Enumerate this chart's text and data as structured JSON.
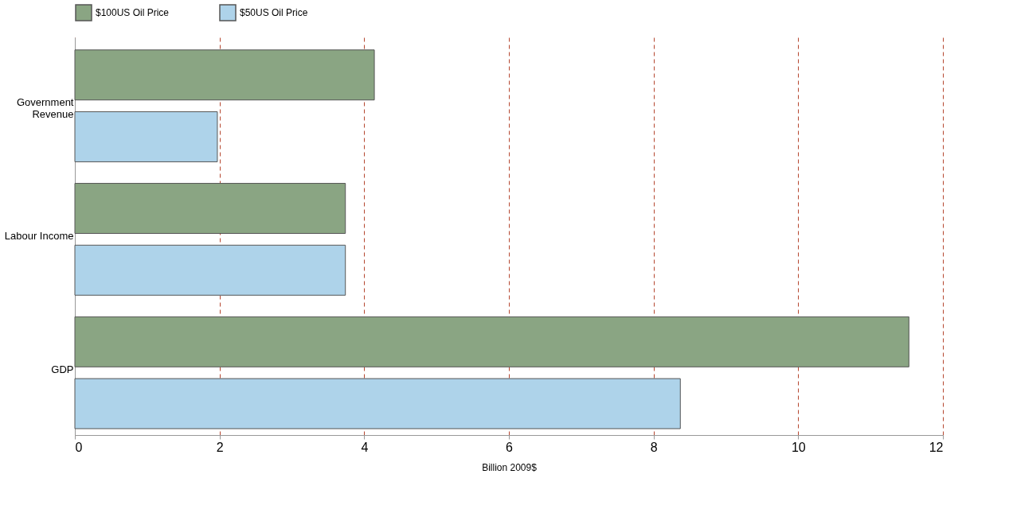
{
  "chart_data": {
    "type": "bar",
    "orientation": "horizontal",
    "xlabel": "Billion 2009$",
    "categories": [
      "Government Revenue",
      "Labour Income",
      "GDP"
    ],
    "series": [
      {
        "name": "$100US Oil Price",
        "color": "#8aa583",
        "values": [
          4.14,
          3.74,
          11.53
        ]
      },
      {
        "name": "$50US Oil Price",
        "color": "#aed3ea",
        "values": [
          1.97,
          3.74,
          8.37
        ]
      }
    ],
    "xlim": [
      0,
      12
    ],
    "xticks": [
      0,
      2,
      4,
      6,
      8,
      10,
      12
    ],
    "grid": "x",
    "legend": "top"
  }
}
